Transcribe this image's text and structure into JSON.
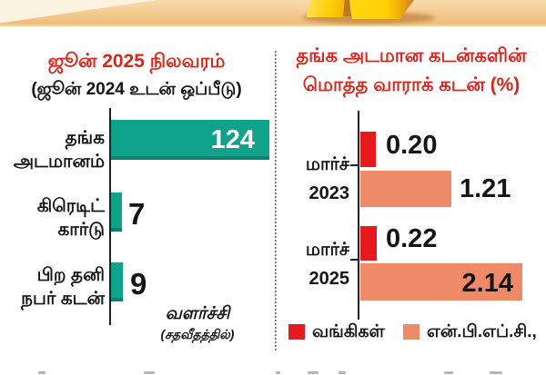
{
  "header": {
    "image_description": "gold-bars-photo"
  },
  "left_chart": {
    "title": "ஜூன் 2025 நிலவரம்",
    "subtitle": "(ஜூன் 2024 உடன் ஒப்பீடு)",
    "rows": [
      {
        "label_line1": "தங்க",
        "label_line2": "அடமானம்",
        "value": "124"
      },
      {
        "label_line1": "கிரெடிட்",
        "label_line2": "கார்டு",
        "value": "7"
      },
      {
        "label_line1": "பிற தனி",
        "label_line2": "நபர் கடன்",
        "value": "9"
      }
    ],
    "footnote_line1": "வளர்ச்சி",
    "footnote_line2": "(சதவீதத்தில்)"
  },
  "right_chart": {
    "title_line1": "தங்க அடமான கடன்களின்",
    "title_line2": "மொத்த வாராக் கடன் (%)",
    "groups": [
      {
        "label_line1": "மார்ச்",
        "label_line2": "2023",
        "bank_value": "0.20",
        "nbfc_value": "1.21"
      },
      {
        "label_line1": "மார்ச்",
        "label_line2": "2025",
        "bank_value": "0.22",
        "nbfc_value": "2.14"
      }
    ],
    "legend": [
      {
        "label": "வங்கிகள்",
        "color": "#e6191c"
      },
      {
        "label": "என்.பி.எப்.சி.,",
        "color": "#ef8a68"
      }
    ]
  },
  "colors": {
    "title_red": "#d7271d",
    "teal_bar": "#10a38b",
    "bank_red": "#e6191c",
    "nbfc_salmon": "#ef8a68",
    "text_black": "#151515"
  },
  "chart_data": [
    {
      "type": "bar",
      "orientation": "horizontal",
      "title": "ஜூன் 2025 நிலவரம்",
      "subtitle": "(ஜூன் 2024 உடன் ஒப்பீடு)",
      "categories": [
        "தங்க அடமானம்",
        "கிரெடிட் கார்டு",
        "பிற தனி நபர் கடன்"
      ],
      "values": [
        124,
        7,
        9
      ],
      "value_note": "வளர்ச்சி (சதவீதத்தில்)",
      "bar_color": "#10a38b",
      "grid": false,
      "xlim": [
        0,
        130
      ]
    },
    {
      "type": "bar",
      "orientation": "horizontal",
      "title": "தங்க அடமான கடன்களின் மொத்த வாராக் கடன் (%)",
      "categories": [
        "மார்ச் 2023",
        "மார்ச் 2025"
      ],
      "series": [
        {
          "name": "வங்கிகள்",
          "values": [
            0.2,
            0.22
          ],
          "color": "#e6191c"
        },
        {
          "name": "என்.பி.எப்.சி.,",
          "values": [
            1.21,
            2.14
          ],
          "color": "#ef8a68"
        }
      ],
      "grid": false,
      "legend_position": "bottom",
      "xlim": [
        0,
        2.2
      ]
    }
  ]
}
